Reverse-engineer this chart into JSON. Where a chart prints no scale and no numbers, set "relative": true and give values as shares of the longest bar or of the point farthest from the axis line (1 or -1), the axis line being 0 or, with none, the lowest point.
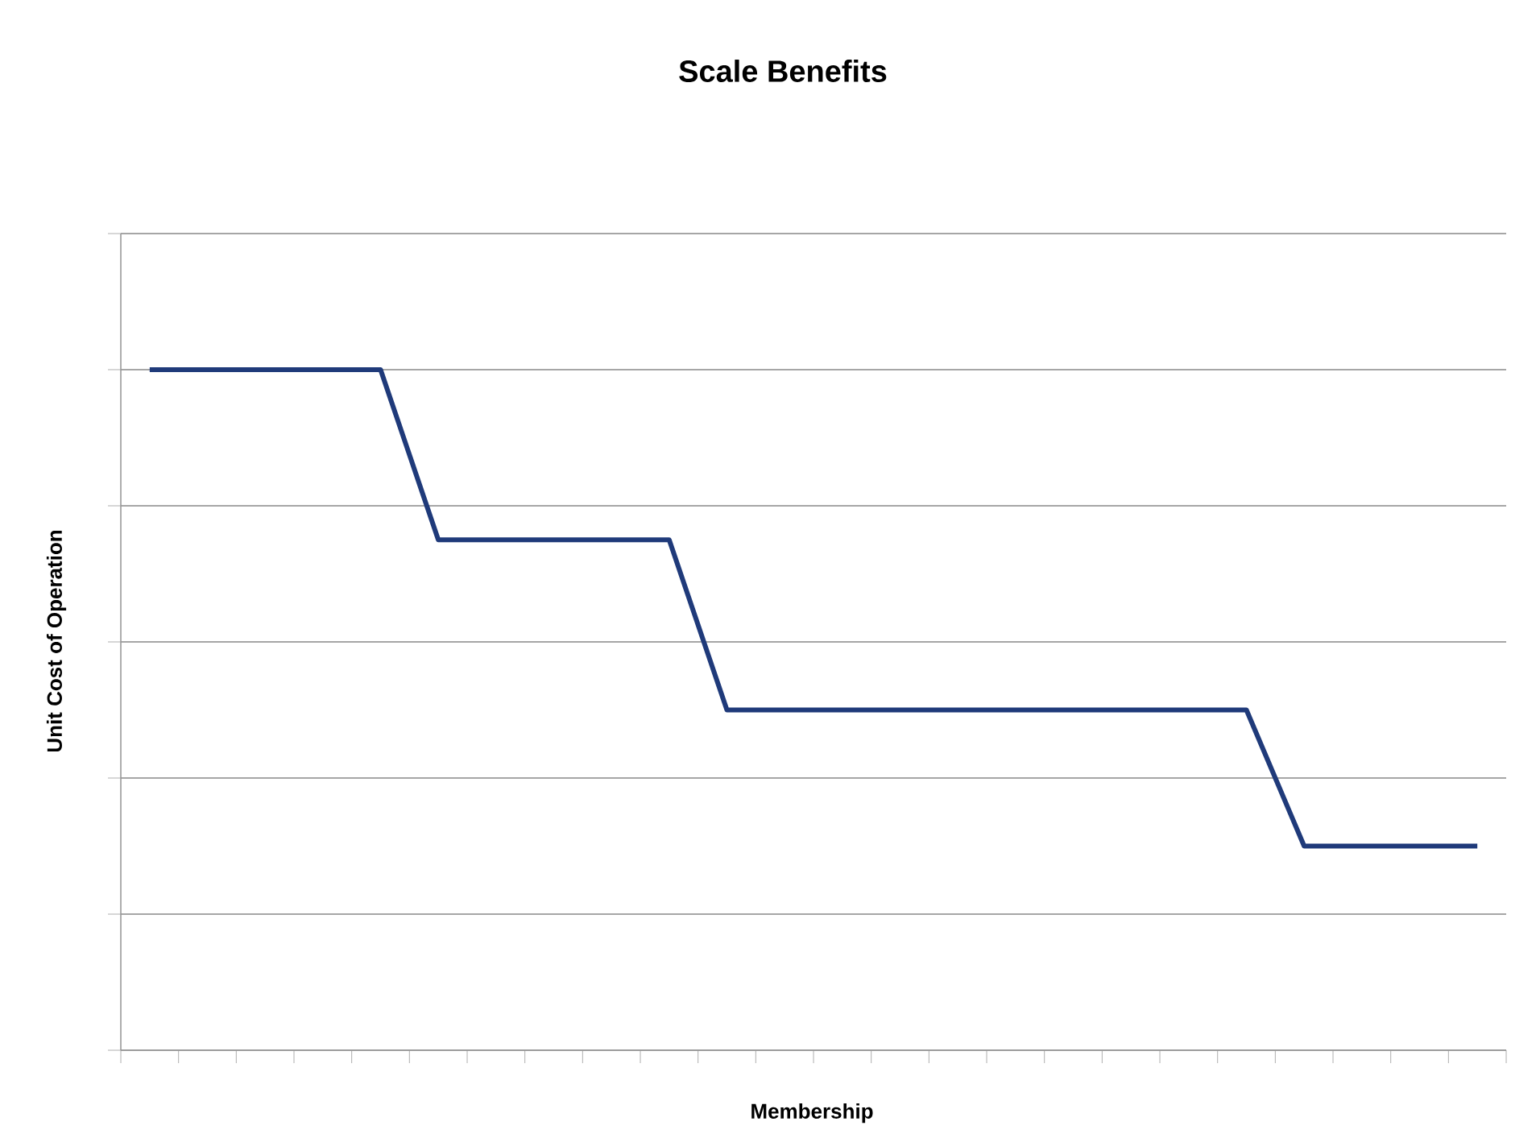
{
  "chart_data": {
    "type": "line",
    "title": "Scale Benefits",
    "xlabel": "Membership",
    "ylabel": "Unit Cost of Operation",
    "categories": [
      null,
      null,
      null,
      null,
      null,
      null,
      null,
      null,
      null,
      null,
      null,
      null,
      null,
      null,
      null,
      null,
      null,
      null,
      null,
      null,
      null,
      null,
      null,
      null
    ],
    "relative": true,
    "grid": "y",
    "marker": "none",
    "line_style": "solid",
    "tick_labels": false,
    "series": [
      {
        "color": "#1f3a7a",
        "values": [
          1,
          1,
          1,
          1,
          1,
          0.75,
          0.75,
          0.75,
          0.75,
          0.75,
          0.5,
          0.5,
          0.5,
          0.5,
          0.5,
          0.5,
          0.5,
          0.5,
          0.5,
          0.5,
          0.3,
          0.3,
          0.3,
          0.3
        ]
      }
    ]
  }
}
